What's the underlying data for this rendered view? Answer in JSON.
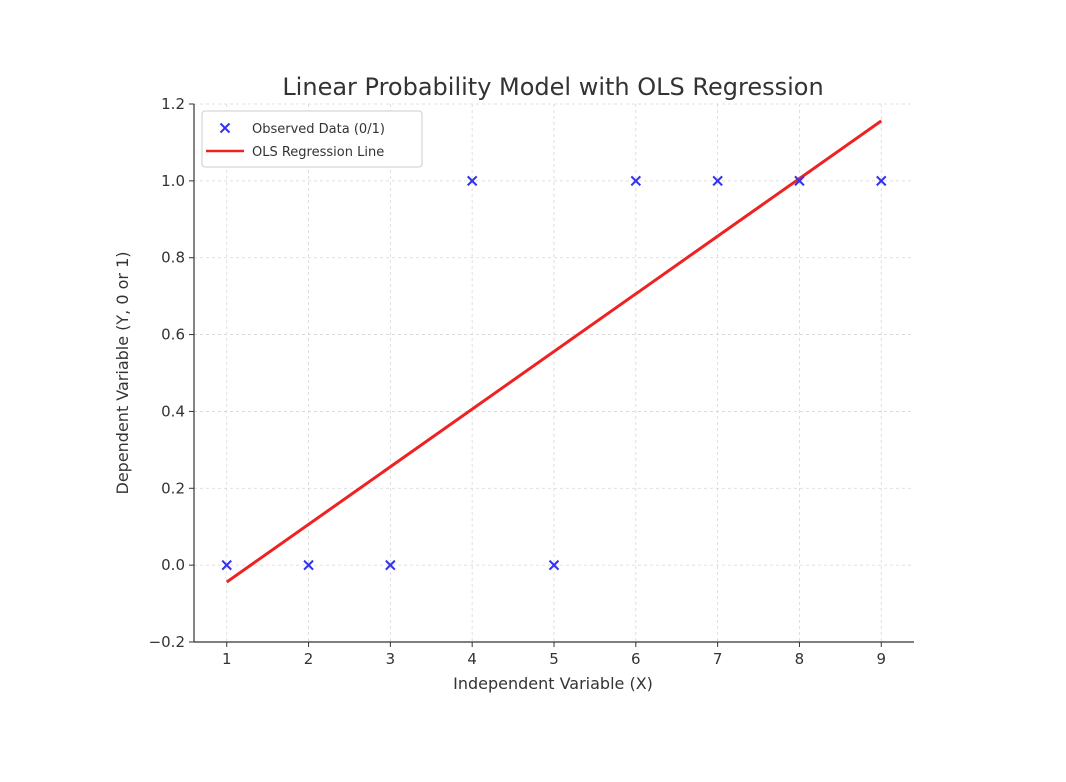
{
  "chart_data": {
    "type": "scatter",
    "title": "Linear Probability Model with OLS Regression",
    "xlabel": "Independent Variable (X)",
    "ylabel": "Dependent Variable (Y, 0 or 1)",
    "xlim": [
      0.6,
      9.4
    ],
    "ylim": [
      -0.2,
      1.2
    ],
    "xticks": [
      1,
      2,
      3,
      4,
      5,
      6,
      7,
      8,
      9
    ],
    "yticks": [
      -0.2,
      0.0,
      0.2,
      0.4,
      0.6,
      0.8,
      1.0,
      1.2
    ],
    "ytick_labels": [
      "−0.2",
      "0.0",
      "0.2",
      "0.4",
      "0.6",
      "0.8",
      "1.0",
      "1.2"
    ],
    "grid": true,
    "legend_position": "top-left",
    "series": [
      {
        "name": "Observed Data (0/1)",
        "kind": "scatter",
        "marker": "x",
        "color": "#3333ee",
        "x": [
          1,
          2,
          3,
          4,
          5,
          6,
          7,
          8,
          9
        ],
        "y": [
          0,
          0,
          0,
          1,
          0,
          1,
          1,
          1,
          1
        ]
      },
      {
        "name": "OLS Regression Line",
        "kind": "line",
        "color": "#ee2222",
        "x": [
          1,
          9
        ],
        "y": [
          -0.044,
          1.156
        ]
      }
    ]
  }
}
